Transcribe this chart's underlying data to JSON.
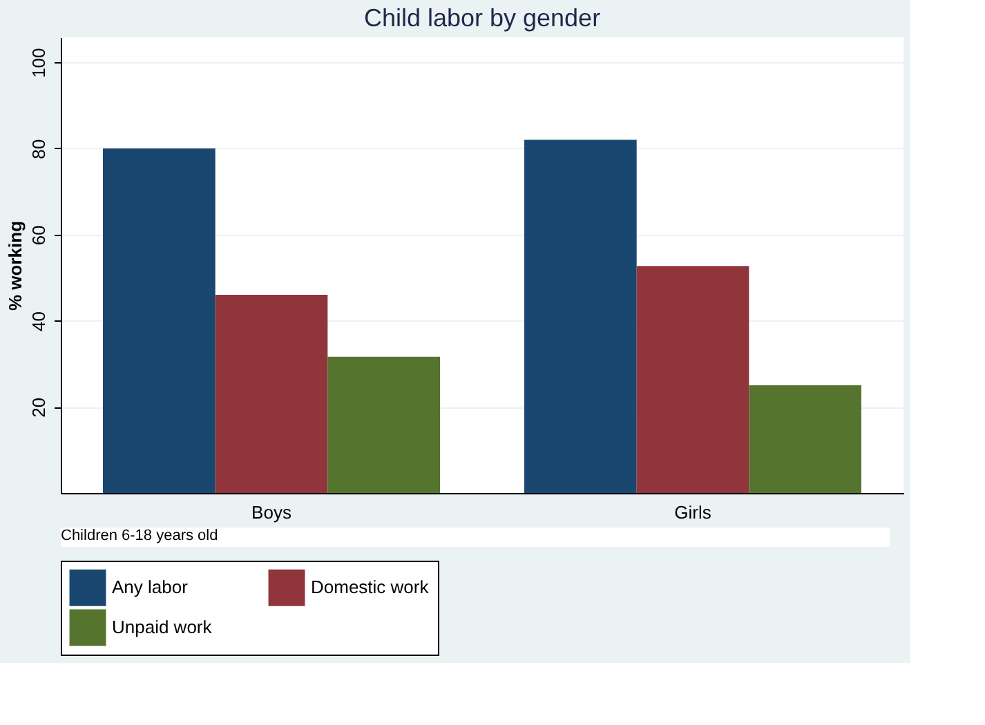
{
  "chart_data": {
    "type": "bar",
    "title": "Child labor by gender",
    "ylabel": "% working",
    "categories": [
      "Boys",
      "Girls"
    ],
    "series": [
      {
        "name": "Any labor",
        "color": "#1a476f",
        "values": [
          80,
          82
        ]
      },
      {
        "name": "Domestic work",
        "color": "#90353b",
        "values": [
          46,
          52.7
        ]
      },
      {
        "name": "Unpaid work",
        "color": "#55752f",
        "values": [
          31.6,
          25
        ]
      }
    ],
    "ylim": [
      0,
      105.8
    ],
    "yticks": [
      20,
      40,
      60,
      80,
      100
    ],
    "grid": "y",
    "legend": "bottom",
    "annotations": [
      "Children 6-18 years old"
    ]
  }
}
